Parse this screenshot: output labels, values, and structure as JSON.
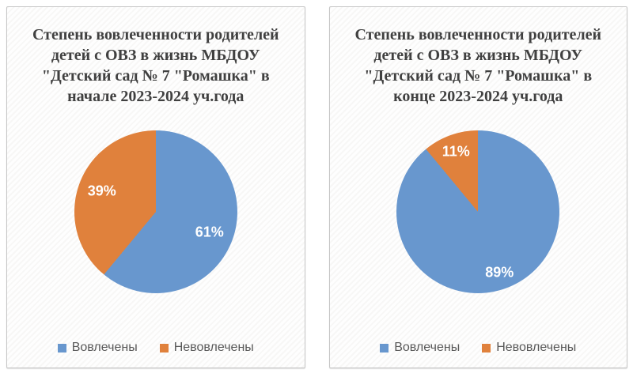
{
  "colors": {
    "involved_blue": "#6897CE",
    "not_involved_orange": "#E0813C",
    "title_text": "#404040",
    "legend_text": "#595959",
    "card_border": "#C6C6C6",
    "data_label_text": "#FFFFFF"
  },
  "chart_data": [
    {
      "type": "pie",
      "title": "Степень вовлеченности родителей детей с ОВЗ в жизнь МБДОУ \"Детский сад № 7 \"Ромашка\" в начале 2023-2024 уч.года",
      "labels": [
        "Вовлечены",
        "Невовлечены"
      ],
      "values": [
        61,
        39
      ],
      "data_labels": [
        "61%",
        "39%"
      ],
      "colors": [
        "#6897CE",
        "#E0813C"
      ],
      "start_angle_deg": 0,
      "direction": "clockwise",
      "legend_position": "bottom"
    },
    {
      "type": "pie",
      "title": "Степень вовлеченности родителей детей с ОВЗ в жизнь МБДОУ \"Детский сад № 7 \"Ромашка\" в конце 2023-2024 уч.года",
      "labels": [
        "Вовлечены",
        "Невовлечены"
      ],
      "values": [
        89,
        11
      ],
      "data_labels": [
        "89%",
        "11%"
      ],
      "colors": [
        "#6897CE",
        "#E0813C"
      ],
      "start_angle_deg": 0,
      "direction": "clockwise",
      "legend_position": "bottom"
    }
  ]
}
